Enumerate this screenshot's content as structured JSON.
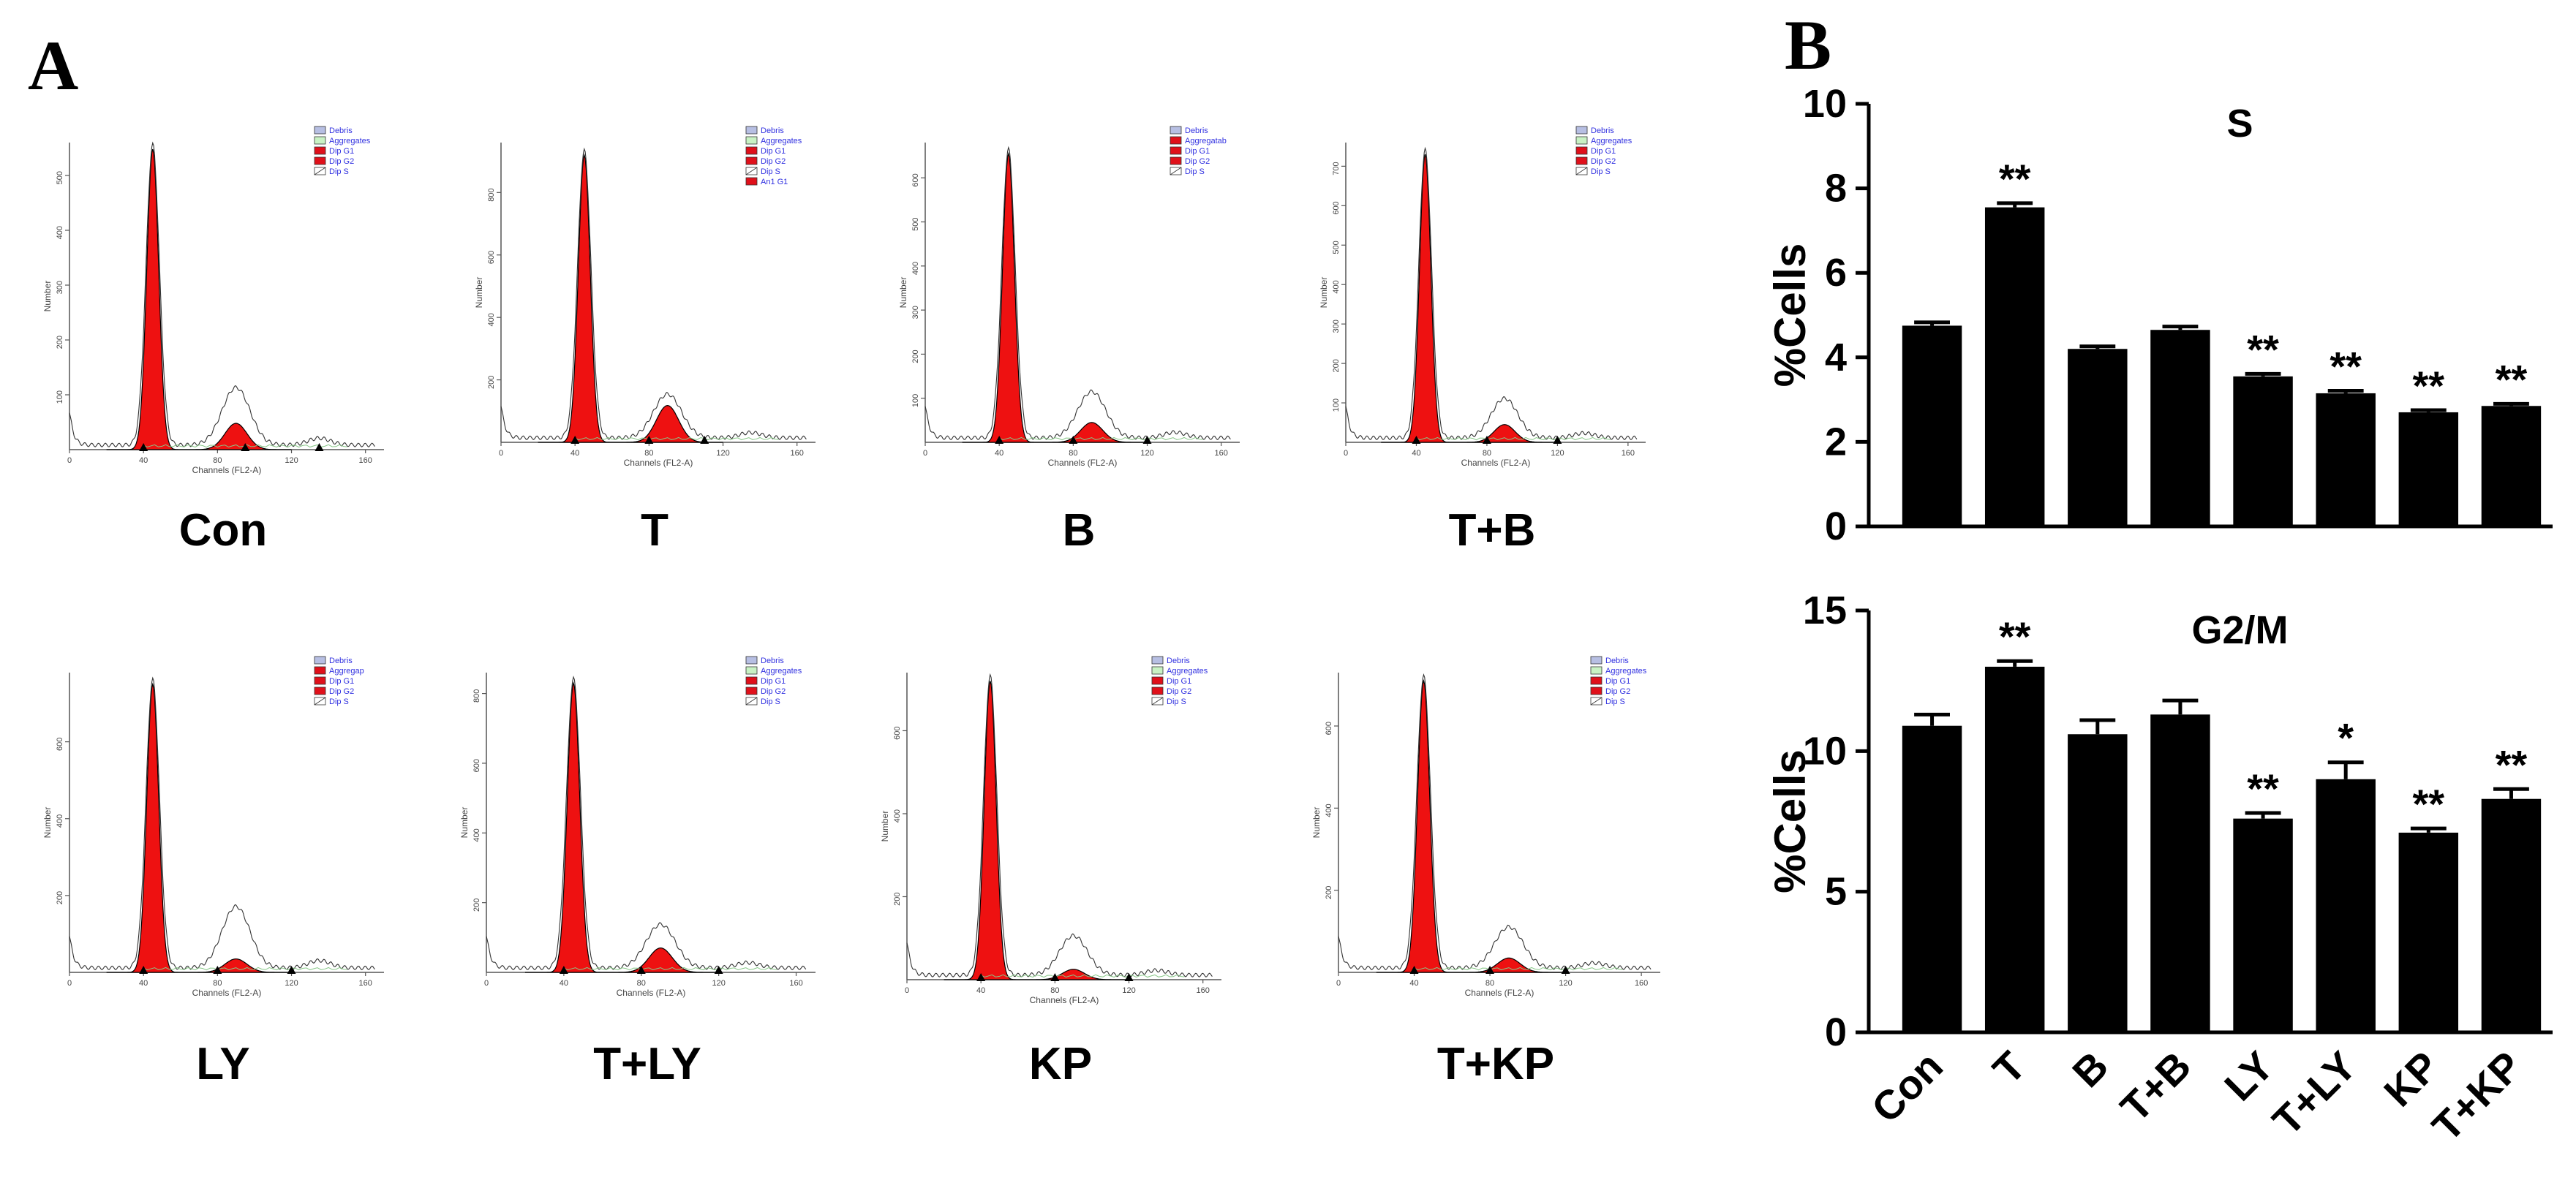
{
  "panel_a_label": "A",
  "panel_b_label": "B",
  "histograms": [
    {
      "name": "Con",
      "legend": [
        "Debris",
        "Aggregates",
        "Dip G1",
        "Dip G2",
        "Dip S"
      ],
      "yticks": [
        "100",
        "200",
        "300",
        "400",
        "500"
      ],
      "ymax": 560,
      "g1": 548,
      "g2": 48,
      "env": 105,
      "marks": [
        40,
        95,
        135
      ]
    },
    {
      "name": "T",
      "legend": [
        "Debris",
        "Aggregates",
        "Dip G1",
        "Dip G2",
        "Dip S",
        "An1 G1"
      ],
      "yticks": [
        "200",
        "400",
        "600",
        "800"
      ],
      "ymax": 960,
      "g1": 920,
      "g2": 118,
      "env": 140,
      "marks": [
        40,
        80,
        110
      ]
    },
    {
      "name": "B",
      "legend": [
        "Debris",
        "Aggregatab",
        "Dip G1",
        "Dip G2",
        "Dip S"
      ],
      "yticks": [
        "100",
        "200",
        "300",
        "400",
        "500",
        "600"
      ],
      "ymax": 680,
      "g1": 655,
      "g2": 45,
      "env": 105,
      "marks": [
        40,
        80,
        120
      ]
    },
    {
      "name": "T+B",
      "legend": [
        "Debris",
        "Aggregates",
        "Dip G1",
        "Dip G2",
        "Dip S"
      ],
      "yticks": [
        "100",
        "200",
        "300",
        "400",
        "500",
        "600",
        "700"
      ],
      "ymax": 760,
      "g1": 730,
      "g2": 45,
      "env": 100,
      "marks": [
        40,
        80,
        120
      ]
    },
    {
      "name": "LY",
      "legend": [
        "Debris",
        "Aggregap",
        "Dip G1",
        "Dip G2",
        "Dip S"
      ],
      "yticks": [
        "200",
        "400",
        "600"
      ],
      "ymax": 780,
      "g1": 750,
      "g2": 35,
      "env": 160,
      "marks": [
        40,
        80,
        120
      ]
    },
    {
      "name": "T+LY",
      "legend": [
        "Debris",
        "Aggregates",
        "Dip G1",
        "Dip G2",
        "Dip S"
      ],
      "yticks": [
        "200",
        "400",
        "600",
        "800"
      ],
      "ymax": 860,
      "g1": 830,
      "g2": 70,
      "env": 125,
      "marks": [
        40,
        80,
        120
      ]
    },
    {
      "name": "KP",
      "legend": [
        "Debris",
        "Aggregates",
        "Dip G1",
        "Dip G2",
        "Dip S"
      ],
      "yticks": [
        "200",
        "400",
        "600"
      ],
      "ymax": 740,
      "g1": 720,
      "g2": 25,
      "env": 95,
      "marks": [
        40,
        80,
        120
      ]
    },
    {
      "name": "T+KP",
      "legend": [
        "Debris",
        "Aggregates",
        "Dip G1",
        "Dip G2",
        "Dip S"
      ],
      "yticks": [
        "200",
        "400",
        "600"
      ],
      "ymax": 730,
      "g1": 710,
      "g2": 35,
      "env": 100,
      "marks": [
        40,
        80,
        120
      ]
    }
  ],
  "histogram_xlabel": "Channels (FL2-A)",
  "histogram_ylabel": "Number",
  "histogram_xticks": [
    "0",
    "40",
    "80",
    "120",
    "160"
  ],
  "legend_colors": {
    "Debris": "#b7bfe3",
    "Aggregates": "#c9f2c4",
    "Dip G1": "#e0101a",
    "Dip G2": "#e0101a",
    "Dip S": "#ffffff",
    "An1 G1": "#e0101a"
  },
  "fill_color": "#ee1111",
  "legend_text_color": "#3030e0",
  "chart_data": [
    {
      "type": "bar",
      "title": "S",
      "ylabel": "%Cells",
      "categories": [
        "Con",
        "T",
        "B",
        "T+B",
        "LY",
        "T+LY",
        "KP",
        "T+KP"
      ],
      "values": [
        4.75,
        7.55,
        4.2,
        4.65,
        3.55,
        3.15,
        2.7,
        2.85
      ],
      "errors": [
        0.08,
        0.1,
        0.06,
        0.08,
        0.06,
        0.06,
        0.05,
        0.05
      ],
      "significance": [
        "",
        "**",
        "",
        "",
        "**",
        "**",
        "**",
        "**"
      ],
      "ylim": [
        0,
        10
      ],
      "yticks": [
        "0",
        "2",
        "4",
        "6",
        "8",
        "10"
      ],
      "bar_color": "#000000"
    },
    {
      "type": "bar",
      "title": "G2/M",
      "ylabel": "%Cells",
      "categories": [
        "Con",
        "T",
        "B",
        "T+B",
        "LY",
        "T+LY",
        "KP",
        "T+KP"
      ],
      "values": [
        10.9,
        13.0,
        10.6,
        11.3,
        7.6,
        9.0,
        7.1,
        8.3
      ],
      "errors": [
        0.4,
        0.2,
        0.5,
        0.5,
        0.2,
        0.6,
        0.15,
        0.35
      ],
      "significance": [
        "",
        "**",
        "",
        "",
        "**",
        "*",
        "**",
        "**"
      ],
      "ylim": [
        0,
        15
      ],
      "yticks": [
        "0",
        "5",
        "10",
        "15"
      ],
      "bar_color": "#000000"
    }
  ]
}
